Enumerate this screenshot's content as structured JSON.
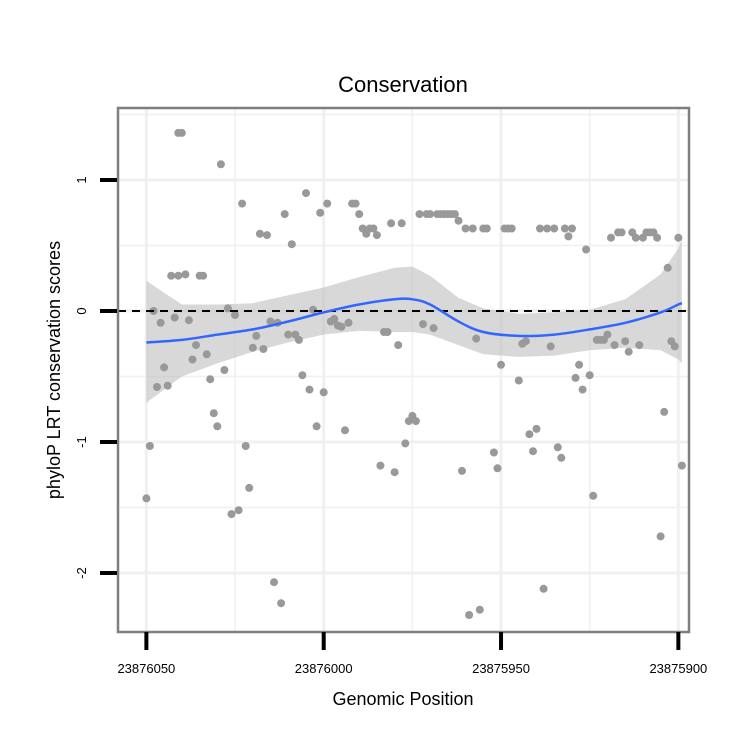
{
  "chart_data": {
    "type": "scatter",
    "title": "Conservation",
    "xlabel": "Genomic Position",
    "ylabel": "phyloP LRT conservation scores",
    "x_reversed": true,
    "xlim": [
      23876058,
      23875897
    ],
    "ylim": [
      -2.45,
      1.55
    ],
    "x_ticks": [
      23876050,
      23876000,
      23875950,
      23875900
    ],
    "y_ticks": [
      -2,
      -1,
      0,
      1
    ],
    "grid": true,
    "reference_line": {
      "y": 0,
      "style": "dashed"
    },
    "colors": {
      "points": "#999999",
      "smooth_line": "#3366ff",
      "confidence_band": "#bebebe",
      "panel_border": "#7f7f7f",
      "grid": "#f0f0f0"
    },
    "points": [
      {
        "x": 23876050,
        "y": -1.43
      },
      {
        "x": 23876049,
        "y": -1.03
      },
      {
        "x": 23876048,
        "y": 0.0
      },
      {
        "x": 23876047,
        "y": -0.58
      },
      {
        "x": 23876046,
        "y": -0.09
      },
      {
        "x": 23876045,
        "y": -0.43
      },
      {
        "x": 23876044,
        "y": -0.57
      },
      {
        "x": 23876043,
        "y": 0.27
      },
      {
        "x": 23876042,
        "y": -0.05
      },
      {
        "x": 23876041,
        "y": 1.36
      },
      {
        "x": 23876041,
        "y": 0.27
      },
      {
        "x": 23876040,
        "y": 1.36
      },
      {
        "x": 23876039,
        "y": 0.28
      },
      {
        "x": 23876038,
        "y": -0.07
      },
      {
        "x": 23876037,
        "y": -0.37
      },
      {
        "x": 23876036,
        "y": -0.26
      },
      {
        "x": 23876035,
        "y": 0.27
      },
      {
        "x": 23876034,
        "y": 0.27
      },
      {
        "x": 23876033,
        "y": -0.33
      },
      {
        "x": 23876032,
        "y": -0.52
      },
      {
        "x": 23876031,
        "y": -0.78
      },
      {
        "x": 23876030,
        "y": -0.88
      },
      {
        "x": 23876029,
        "y": 1.12
      },
      {
        "x": 23876028,
        "y": -0.45
      },
      {
        "x": 23876027,
        "y": 0.02
      },
      {
        "x": 23876026,
        "y": -1.55
      },
      {
        "x": 23876025,
        "y": -0.03
      },
      {
        "x": 23876024,
        "y": -1.52
      },
      {
        "x": 23876023,
        "y": 0.82
      },
      {
        "x": 23876022,
        "y": -1.03
      },
      {
        "x": 23876021,
        "y": -1.35
      },
      {
        "x": 23876020,
        "y": -0.28
      },
      {
        "x": 23876019,
        "y": -0.19
      },
      {
        "x": 23876018,
        "y": 0.59
      },
      {
        "x": 23876017,
        "y": -0.29
      },
      {
        "x": 23876016,
        "y": 0.58
      },
      {
        "x": 23876015,
        "y": -0.08
      },
      {
        "x": 23876014,
        "y": -2.07
      },
      {
        "x": 23876013,
        "y": -0.09
      },
      {
        "x": 23876012,
        "y": -2.23
      },
      {
        "x": 23876011,
        "y": 0.74
      },
      {
        "x": 23876010,
        "y": -0.18
      },
      {
        "x": 23876009,
        "y": 0.51
      },
      {
        "x": 23876008,
        "y": -0.18
      },
      {
        "x": 23876007,
        "y": -0.22
      },
      {
        "x": 23876006,
        "y": -0.49
      },
      {
        "x": 23876005,
        "y": 0.9
      },
      {
        "x": 23876004,
        "y": -0.6
      },
      {
        "x": 23876003,
        "y": 0.01
      },
      {
        "x": 23876002,
        "y": -0.88
      },
      {
        "x": 23876001,
        "y": 0.75
      },
      {
        "x": 23876000,
        "y": -0.62
      },
      {
        "x": 23875999,
        "y": 0.82
      },
      {
        "x": 23875998,
        "y": -0.08
      },
      {
        "x": 23875997,
        "y": -0.06
      },
      {
        "x": 23875996,
        "y": -0.11
      },
      {
        "x": 23875995,
        "y": -0.12
      },
      {
        "x": 23875994,
        "y": -0.91
      },
      {
        "x": 23875993,
        "y": -0.09
      },
      {
        "x": 23875992,
        "y": 0.82
      },
      {
        "x": 23875991,
        "y": 0.82
      },
      {
        "x": 23875990,
        "y": 0.74
      },
      {
        "x": 23875989,
        "y": 0.63
      },
      {
        "x": 23875988,
        "y": 0.59
      },
      {
        "x": 23875987,
        "y": 0.63
      },
      {
        "x": 23875986,
        "y": 0.63
      },
      {
        "x": 23875985,
        "y": 0.58
      },
      {
        "x": 23875984,
        "y": -1.18
      },
      {
        "x": 23875983,
        "y": -0.16
      },
      {
        "x": 23875982,
        "y": -0.16
      },
      {
        "x": 23875981,
        "y": 0.67
      },
      {
        "x": 23875980,
        "y": -1.23
      },
      {
        "x": 23875979,
        "y": -0.26
      },
      {
        "x": 23875978,
        "y": 0.67
      },
      {
        "x": 23875977,
        "y": -1.01
      },
      {
        "x": 23875976,
        "y": -0.84
      },
      {
        "x": 23875975,
        "y": -0.8
      },
      {
        "x": 23875974,
        "y": -0.84
      },
      {
        "x": 23875973,
        "y": 0.74
      },
      {
        "x": 23875972,
        "y": -0.1
      },
      {
        "x": 23875971,
        "y": 0.74
      },
      {
        "x": 23875970,
        "y": 0.74
      },
      {
        "x": 23875969,
        "y": -0.13
      },
      {
        "x": 23875968,
        "y": 0.74
      },
      {
        "x": 23875967,
        "y": 0.74
      },
      {
        "x": 23875966,
        "y": 0.74
      },
      {
        "x": 23875965,
        "y": 0.74
      },
      {
        "x": 23875964,
        "y": 0.74
      },
      {
        "x": 23875963,
        "y": 0.74
      },
      {
        "x": 23875962,
        "y": 0.69
      },
      {
        "x": 23875961,
        "y": -1.22
      },
      {
        "x": 23875960,
        "y": 0.63
      },
      {
        "x": 23875959,
        "y": -2.32
      },
      {
        "x": 23875958,
        "y": 0.63
      },
      {
        "x": 23875957,
        "y": -0.21
      },
      {
        "x": 23875956,
        "y": -2.28
      },
      {
        "x": 23875955,
        "y": 0.63
      },
      {
        "x": 23875954,
        "y": 0.63
      },
      {
        "x": 23875952,
        "y": -1.08
      },
      {
        "x": 23875951,
        "y": -1.2
      },
      {
        "x": 23875950,
        "y": -0.41
      },
      {
        "x": 23875949,
        "y": 0.63
      },
      {
        "x": 23875948,
        "y": 0.63
      },
      {
        "x": 23875947,
        "y": 0.63
      },
      {
        "x": 23875945,
        "y": -0.53
      },
      {
        "x": 23875944,
        "y": -0.25
      },
      {
        "x": 23875943,
        "y": -0.23
      },
      {
        "x": 23875942,
        "y": -0.94
      },
      {
        "x": 23875941,
        "y": -1.07
      },
      {
        "x": 23875940,
        "y": -0.9
      },
      {
        "x": 23875939,
        "y": 0.63
      },
      {
        "x": 23875938,
        "y": -2.12
      },
      {
        "x": 23875937,
        "y": 0.63
      },
      {
        "x": 23875936,
        "y": -0.27
      },
      {
        "x": 23875935,
        "y": 0.63
      },
      {
        "x": 23875934,
        "y": -1.04
      },
      {
        "x": 23875933,
        "y": -1.12
      },
      {
        "x": 23875932,
        "y": 0.63
      },
      {
        "x": 23875931,
        "y": 0.57
      },
      {
        "x": 23875930,
        "y": 0.63
      },
      {
        "x": 23875929,
        "y": -0.51
      },
      {
        "x": 23875928,
        "y": -0.41
      },
      {
        "x": 23875927,
        "y": -0.6
      },
      {
        "x": 23875926,
        "y": 0.47
      },
      {
        "x": 23875925,
        "y": -0.49
      },
      {
        "x": 23875924,
        "y": -1.41
      },
      {
        "x": 23875923,
        "y": -0.22
      },
      {
        "x": 23875922,
        "y": -0.22
      },
      {
        "x": 23875921,
        "y": -0.22
      },
      {
        "x": 23875920,
        "y": -0.18
      },
      {
        "x": 23875919,
        "y": 0.56
      },
      {
        "x": 23875918,
        "y": -0.26
      },
      {
        "x": 23875917,
        "y": 0.6
      },
      {
        "x": 23875916,
        "y": 0.6
      },
      {
        "x": 23875915,
        "y": -0.23
      },
      {
        "x": 23875914,
        "y": -0.31
      },
      {
        "x": 23875913,
        "y": 0.6
      },
      {
        "x": 23875912,
        "y": 0.56
      },
      {
        "x": 23875911,
        "y": -0.26
      },
      {
        "x": 23875910,
        "y": 0.56
      },
      {
        "x": 23875909,
        "y": 0.6
      },
      {
        "x": 23875908,
        "y": 0.6
      },
      {
        "x": 23875907,
        "y": 0.6
      },
      {
        "x": 23875906,
        "y": 0.56
      },
      {
        "x": 23875905,
        "y": -1.72
      },
      {
        "x": 23875904,
        "y": -0.77
      },
      {
        "x": 23875903,
        "y": 0.33
      },
      {
        "x": 23875902,
        "y": -0.23
      },
      {
        "x": 23875901,
        "y": -0.27
      },
      {
        "x": 23875900,
        "y": 0.56
      },
      {
        "x": 23875899,
        "y": -1.18
      }
    ],
    "smooth_fit": [
      {
        "x": 23876050,
        "y": -0.24,
        "lower": -0.7,
        "upper": 0.23
      },
      {
        "x": 23876040,
        "y": -0.22,
        "lower": -0.5,
        "upper": 0.05
      },
      {
        "x": 23876030,
        "y": -0.18,
        "lower": -0.4,
        "upper": 0.05
      },
      {
        "x": 23876020,
        "y": -0.14,
        "lower": -0.31,
        "upper": 0.06
      },
      {
        "x": 23876010,
        "y": -0.08,
        "lower": -0.24,
        "upper": 0.12
      },
      {
        "x": 23876000,
        "y": -0.01,
        "lower": -0.18,
        "upper": 0.18
      },
      {
        "x": 23875990,
        "y": 0.05,
        "lower": -0.15,
        "upper": 0.26
      },
      {
        "x": 23875980,
        "y": 0.09,
        "lower": -0.16,
        "upper": 0.33
      },
      {
        "x": 23875975,
        "y": 0.09,
        "lower": -0.16,
        "upper": 0.34
      },
      {
        "x": 23875970,
        "y": 0.05,
        "lower": -0.18,
        "upper": 0.27
      },
      {
        "x": 23875962,
        "y": -0.08,
        "lower": -0.26,
        "upper": 0.1
      },
      {
        "x": 23875955,
        "y": -0.16,
        "lower": -0.33,
        "upper": 0.02
      },
      {
        "x": 23875945,
        "y": -0.19,
        "lower": -0.35,
        "upper": -0.02
      },
      {
        "x": 23875935,
        "y": -0.18,
        "lower": -0.34,
        "upper": -0.01
      },
      {
        "x": 23875925,
        "y": -0.14,
        "lower": -0.3,
        "upper": 0.01
      },
      {
        "x": 23875915,
        "y": -0.09,
        "lower": -0.28,
        "upper": 0.09
      },
      {
        "x": 23875905,
        "y": -0.01,
        "lower": -0.3,
        "upper": 0.28
      },
      {
        "x": 23875900,
        "y": 0.05,
        "lower": -0.37,
        "upper": 0.48
      },
      {
        "x": 23875899,
        "y": 0.06,
        "lower": -0.4,
        "upper": 0.55
      }
    ]
  }
}
